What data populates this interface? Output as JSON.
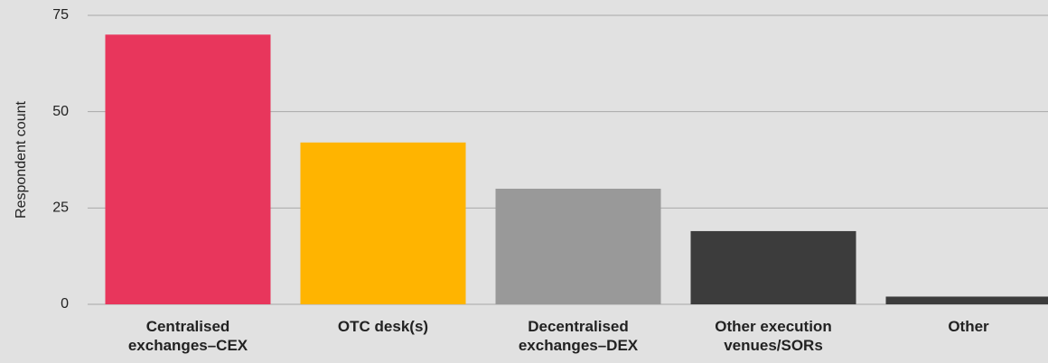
{
  "chart_data": {
    "type": "bar",
    "y_label": "Respondent count",
    "categories": [
      "Centralised exchanges–CEX",
      "OTC desk(s)",
      "Decentralised exchanges–DEX",
      "Other execution venues/SORs",
      "Other"
    ],
    "values": [
      70,
      42,
      30,
      19,
      2
    ],
    "colors": [
      "#e8365c",
      "#ffb400",
      "#999999",
      "#3c3c3c",
      "#3c3c3c"
    ],
    "ylim": [
      0,
      75
    ],
    "yticks": [
      0,
      25,
      50,
      75
    ],
    "grid": true
  }
}
